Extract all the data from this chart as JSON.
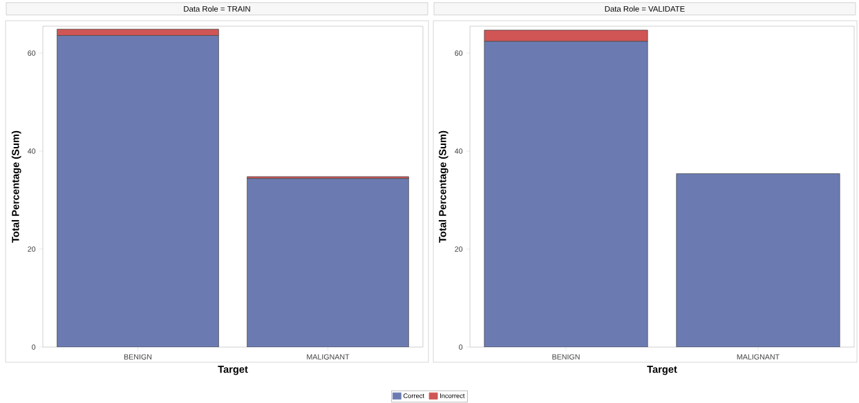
{
  "chart_data": [
    {
      "type": "bar",
      "title": "Data Role = TRAIN",
      "xlabel": "Target",
      "ylabel": "Total Percentage (Sum)",
      "categories": [
        "BENIGN",
        "MALIGNANT"
      ],
      "stacked": true,
      "ylim": [
        0,
        65.5
      ],
      "yticks": [
        0,
        20,
        40,
        60
      ],
      "legend": "bottom",
      "series": [
        {
          "name": "Correct",
          "color": "#6b7bb2",
          "values": [
            63.6,
            34.4
          ]
        },
        {
          "name": "Incorrect",
          "color": "#d05555",
          "values": [
            1.3,
            0.4
          ]
        }
      ]
    },
    {
      "type": "bar",
      "title": "Data Role = VALIDATE",
      "xlabel": "Target",
      "ylabel": "Total Percentage (Sum)",
      "categories": [
        "BENIGN",
        "MALIGNANT"
      ],
      "stacked": true,
      "ylim": [
        0,
        65.5
      ],
      "yticks": [
        0,
        20,
        40,
        60
      ],
      "series": [
        {
          "color": "#6b7bb2",
          "values": [
            62.4,
            35.4
          ]
        },
        {
          "color": "#d05555",
          "values": [
            2.3,
            0
          ]
        }
      ]
    }
  ]
}
